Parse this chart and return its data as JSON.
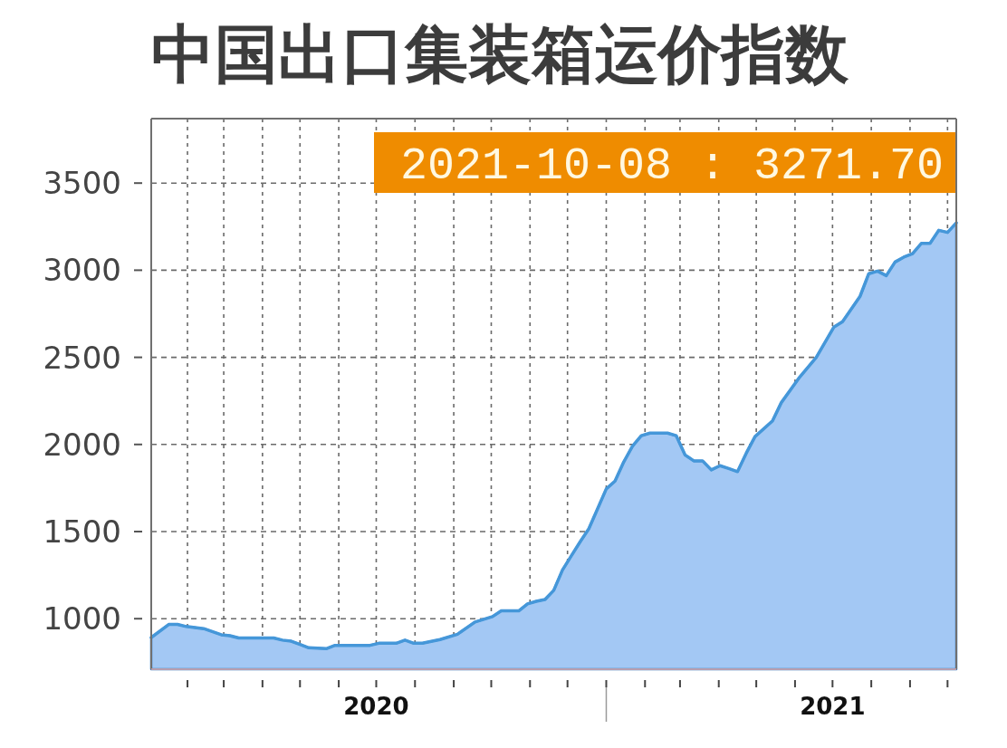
{
  "chart_data": {
    "type": "area",
    "title": "中国出口集装箱运价指数",
    "x": [
      "2020-01-03",
      "2020-01-17",
      "2020-01-24",
      "2020-01-31",
      "2020-02-14",
      "2020-02-28",
      "2020-03-06",
      "2020-03-13",
      "2020-04-10",
      "2020-04-17",
      "2020-04-24",
      "2020-05-01",
      "2020-05-08",
      "2020-05-22",
      "2020-05-29",
      "2020-06-26",
      "2020-07-03",
      "2020-07-17",
      "2020-07-24",
      "2020-07-31",
      "2020-08-07",
      "2020-08-21",
      "2020-09-04",
      "2020-09-18",
      "2020-10-02",
      "2020-10-09",
      "2020-10-23",
      "2020-10-30",
      "2020-11-06",
      "2020-11-13",
      "2020-11-20",
      "2020-11-27",
      "2020-12-04",
      "2020-12-11",
      "2020-12-18",
      "2020-12-25",
      "2021-01-01",
      "2021-01-08",
      "2021-01-15",
      "2021-01-22",
      "2021-01-29",
      "2021-02-05",
      "2021-02-19",
      "2021-02-26",
      "2021-03-05",
      "2021-03-12",
      "2021-03-19",
      "2021-03-26",
      "2021-04-02",
      "2021-04-09",
      "2021-04-16",
      "2021-04-23",
      "2021-04-30",
      "2021-05-14",
      "2021-05-21",
      "2021-06-04",
      "2021-06-18",
      "2021-07-02",
      "2021-07-09",
      "2021-07-23",
      "2021-07-30",
      "2021-08-06",
      "2021-08-13",
      "2021-08-20",
      "2021-08-27",
      "2021-09-03",
      "2021-09-10",
      "2021-09-17",
      "2021-09-24",
      "2021-10-01",
      "2021-10-08"
    ],
    "values": [
      892,
      967,
      967,
      955,
      943,
      908,
      902,
      889,
      889,
      877,
      871,
      852,
      833,
      828,
      847,
      847,
      859,
      859,
      877,
      859,
      859,
      880,
      911,
      981,
      1012,
      1045,
      1045,
      1085,
      1100,
      1110,
      1163,
      1280,
      1360,
      1440,
      1516,
      1630,
      1745,
      1790,
      1900,
      1990,
      2050,
      2065,
      2065,
      2050,
      1940,
      1906,
      1906,
      1854,
      1878,
      1862,
      1844,
      1950,
      2045,
      2135,
      2240,
      2380,
      2500,
      2673,
      2705,
      2850,
      2980,
      2995,
      2969,
      3047,
      3075,
      3095,
      3154,
      3154,
      3229,
      3217,
      3271.7
    ],
    "color": "#a3c8f4",
    "xlim": [
      "2020-01-03",
      "2021-10-08"
    ],
    "xticks": [
      {
        "value": "2020-02-01",
        "label": null
      },
      {
        "value": "2020-03-01",
        "label": null
      },
      {
        "value": "2020-04-01",
        "label": null
      },
      {
        "value": "2020-05-01",
        "label": null
      },
      {
        "value": "2020-06-01",
        "label": null
      },
      {
        "value": "2020-07-01",
        "label": "2020"
      },
      {
        "value": "2020-08-01",
        "label": null
      },
      {
        "value": "2020-09-01",
        "label": null
      },
      {
        "value": "2020-10-01",
        "label": null
      },
      {
        "value": "2020-11-01",
        "label": null
      },
      {
        "value": "2020-12-01",
        "label": null
      },
      {
        "value": "2021-01-01",
        "label": null
      },
      {
        "value": "2021-02-01",
        "label": null
      },
      {
        "value": "2021-03-01",
        "label": null
      },
      {
        "value": "2021-04-01",
        "label": null
      },
      {
        "value": "2021-05-01",
        "label": null
      },
      {
        "value": "2021-06-01",
        "label": null
      },
      {
        "value": "2021-07-01",
        "label": "2021"
      },
      {
        "value": "2021-08-01",
        "label": null
      },
      {
        "value": "2021-09-01",
        "label": null
      },
      {
        "value": "2021-10-01",
        "label": null
      }
    ],
    "ylim": [
      710,
      3870
    ],
    "yticks": [
      1000,
      1500,
      2000,
      2500,
      3000,
      3500
    ],
    "grid": true,
    "annotations": [
      "2021-10-08 : 3271.70"
    ]
  }
}
